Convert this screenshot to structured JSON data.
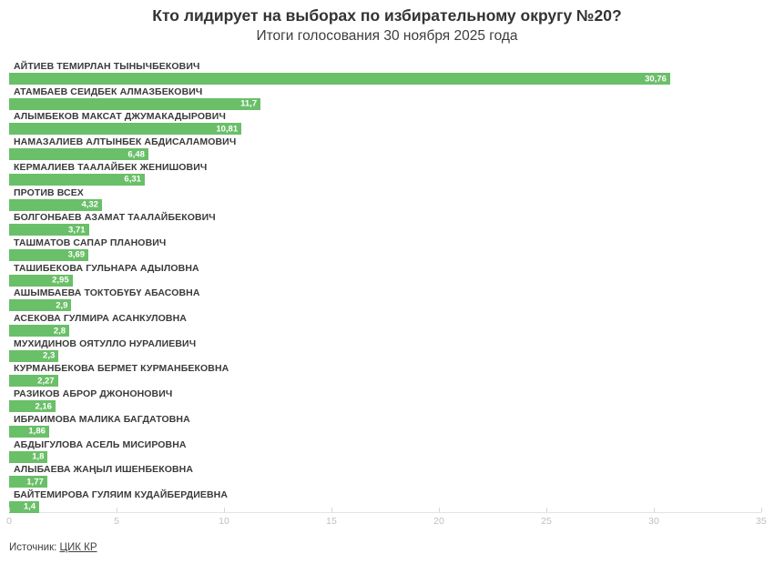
{
  "header": {
    "title": "Кто лидирует на выборах по избирательному округу №20?",
    "subtitle": "Итоги голосования 30 ноября 2025 года"
  },
  "chart_data": {
    "type": "bar",
    "orientation": "horizontal",
    "title": "Кто лидирует на выборах по избирательному округу №20?",
    "subtitle": "Итоги голосования 30 ноября 2025 года",
    "categories": [
      "АЙТИЕВ ТЕМИРЛАН ТЫНЫЧБЕКОВИЧ",
      "АТАМБАЕВ СЕИДБЕК АЛМАЗБЕКОВИЧ",
      "АЛЫМБЕКОВ МАКСАТ ДЖУМАКАДЫРОВИЧ",
      "НАМАЗАЛИЕВ АЛТЫНБЕК АБДИСАЛАМОВИЧ",
      "КЕРМАЛИЕВ ТААЛАЙБЕК ЖЕНИШОВИЧ",
      "ПРОТИВ ВСЕХ",
      "БОЛГОНБАЕВ АЗАМАТ ТААЛАЙБЕКОВИЧ",
      "ТАШМАТОВ САПАР ПЛАНОВИЧ",
      "ТАШИБЕКОВА ГУЛЬНАРА АДЫЛОВНА",
      "АШЫМБАЕВА ТОКТОБҮБҮ АБАСОВНА",
      "АСЕКОВА ГУЛМИРА АСАНКУЛОВНА",
      "МУХИДИНОВ ОЯТУЛЛО НУРАЛИЕВИЧ",
      "КУРМАНБЕКОВА БЕРМЕТ КУРМАНБЕКОВНА",
      "РАЗИКОВ АБРОР ДЖОНОНОВИЧ",
      "ИБРАИМОВА МАЛИКА БАГДАТОВНА",
      "АБДЫГУЛОВА АСЕЛЬ МИСИРОВНА",
      "АЛЫБАЕВА ЖАҢЫЛ ИШЕНБЕКОВНА",
      "БАЙТЕМИРОВА ГУЛЯИМ КУДАЙБЕРДИЕВНА"
    ],
    "values": [
      30.76,
      11.7,
      10.81,
      6.48,
      6.31,
      4.32,
      3.71,
      3.69,
      2.95,
      2.9,
      2.8,
      2.3,
      2.27,
      2.16,
      1.86,
      1.8,
      1.77,
      1.4
    ],
    "value_labels": [
      "30,76",
      "11,7",
      "10,81",
      "6,48",
      "6,31",
      "4,32",
      "3,71",
      "3,69",
      "2,95",
      "2,9",
      "2,8",
      "2,3",
      "2,27",
      "2,16",
      "1,86",
      "1,8",
      "1,77",
      "1,4"
    ],
    "xlabel": "",
    "ylabel": "",
    "xlim": [
      0,
      35
    ],
    "x_ticks": [
      0,
      5,
      10,
      15,
      20,
      25,
      30,
      35
    ],
    "grid": false,
    "legend": "none",
    "bar_color": "#6abf69",
    "value_label_color": "#ffffff"
  },
  "footer": {
    "source_label": "Источник:",
    "source_link": "ЦИК КР"
  }
}
